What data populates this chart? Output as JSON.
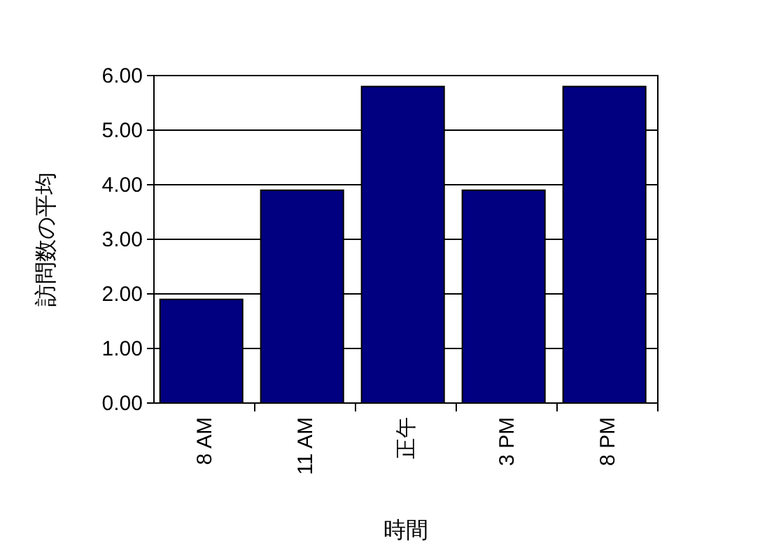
{
  "chart_data": {
    "type": "bar",
    "xlabel": "時間",
    "ylabel": "訪問数の平均",
    "categories": [
      "8 AM",
      "11 AM",
      "正午",
      "3 PM",
      "8 PM"
    ],
    "values": [
      1.9,
      3.9,
      5.8,
      3.9,
      5.8
    ],
    "color": "#000080",
    "ylim": [
      0,
      6
    ],
    "yticks": [
      {
        "value": 0,
        "label": "0.00"
      },
      {
        "value": 1,
        "label": "1.00"
      },
      {
        "value": 2,
        "label": "2.00"
      },
      {
        "value": 3,
        "label": "3.00"
      },
      {
        "value": 4,
        "label": "4.00"
      },
      {
        "value": 5,
        "label": "5.00"
      },
      {
        "value": 6,
        "label": "6.00"
      }
    ],
    "grid": "y"
  }
}
